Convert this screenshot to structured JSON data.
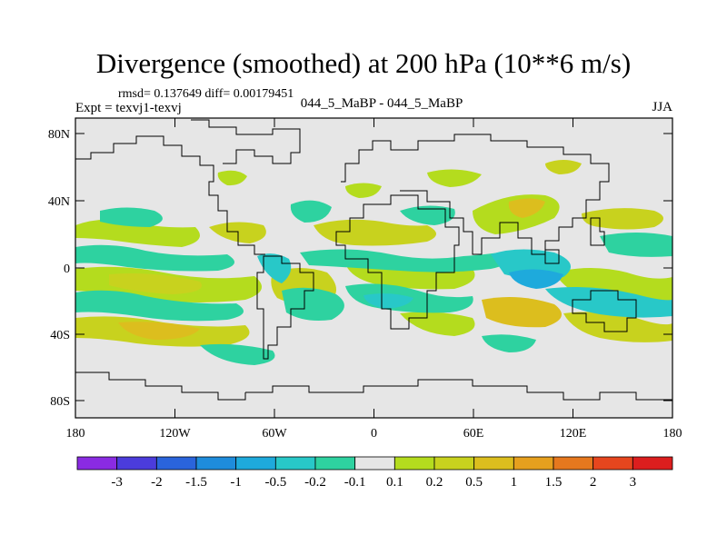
{
  "title": "Divergence (smoothed) at 200 hPa (10**6 m/s)",
  "stats": "rmsd= 0.137649 diff= 0.00179451",
  "experiment": "Expt = texvj1-texvj",
  "comparison": "044_5_MaBP - 044_5_MaBP",
  "season": "JJA",
  "map": {
    "lat_ticks": [
      "80N",
      "40N",
      "0",
      "40S",
      "80S"
    ],
    "lon_ticks": [
      "180",
      "120W",
      "60W",
      "0",
      "60E",
      "120E",
      "180"
    ],
    "background_color": "#e6e6e6",
    "coastline_color": "#000000"
  },
  "colorbar": {
    "labels": [
      "-3",
      "-2",
      "-1.5",
      "-1",
      "-0.5",
      "-0.2",
      "-0.1",
      "0.1",
      "0.2",
      "0.5",
      "1",
      "1.5",
      "2",
      "3"
    ],
    "colors": [
      "#8a2be2",
      "#4b3cdc",
      "#2a64dc",
      "#1e8cdc",
      "#1eaadc",
      "#28c8c8",
      "#2ed2a0",
      "#e6e6e6",
      "#b4dc1e",
      "#c8d21e",
      "#dcbe1e",
      "#e6a01e",
      "#e6781e",
      "#e6461e",
      "#dc1e1e"
    ]
  }
}
